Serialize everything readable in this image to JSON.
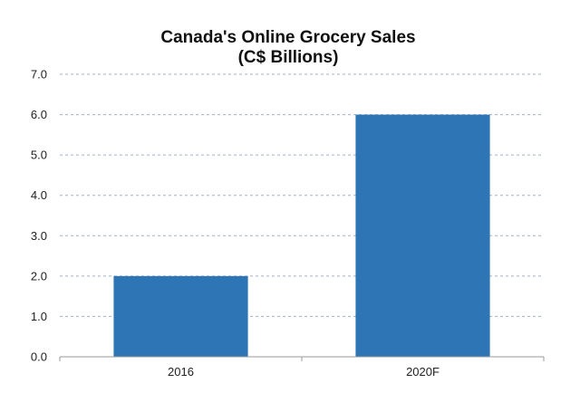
{
  "chart_data": {
    "type": "bar",
    "title": "Canada's Online Grocery Sales",
    "subtitle": "(C$ Billions)",
    "categories": [
      "2016",
      "2020F"
    ],
    "values": [
      2.0,
      6.0
    ],
    "ylim": [
      0,
      7
    ],
    "yticks": [
      "0.0",
      "1.0",
      "2.0",
      "3.0",
      "4.0",
      "5.0",
      "6.0",
      "7.0"
    ],
    "xlabel": "",
    "ylabel": "",
    "grid": true,
    "legend": "none",
    "bar_color": "#2e75b6"
  }
}
